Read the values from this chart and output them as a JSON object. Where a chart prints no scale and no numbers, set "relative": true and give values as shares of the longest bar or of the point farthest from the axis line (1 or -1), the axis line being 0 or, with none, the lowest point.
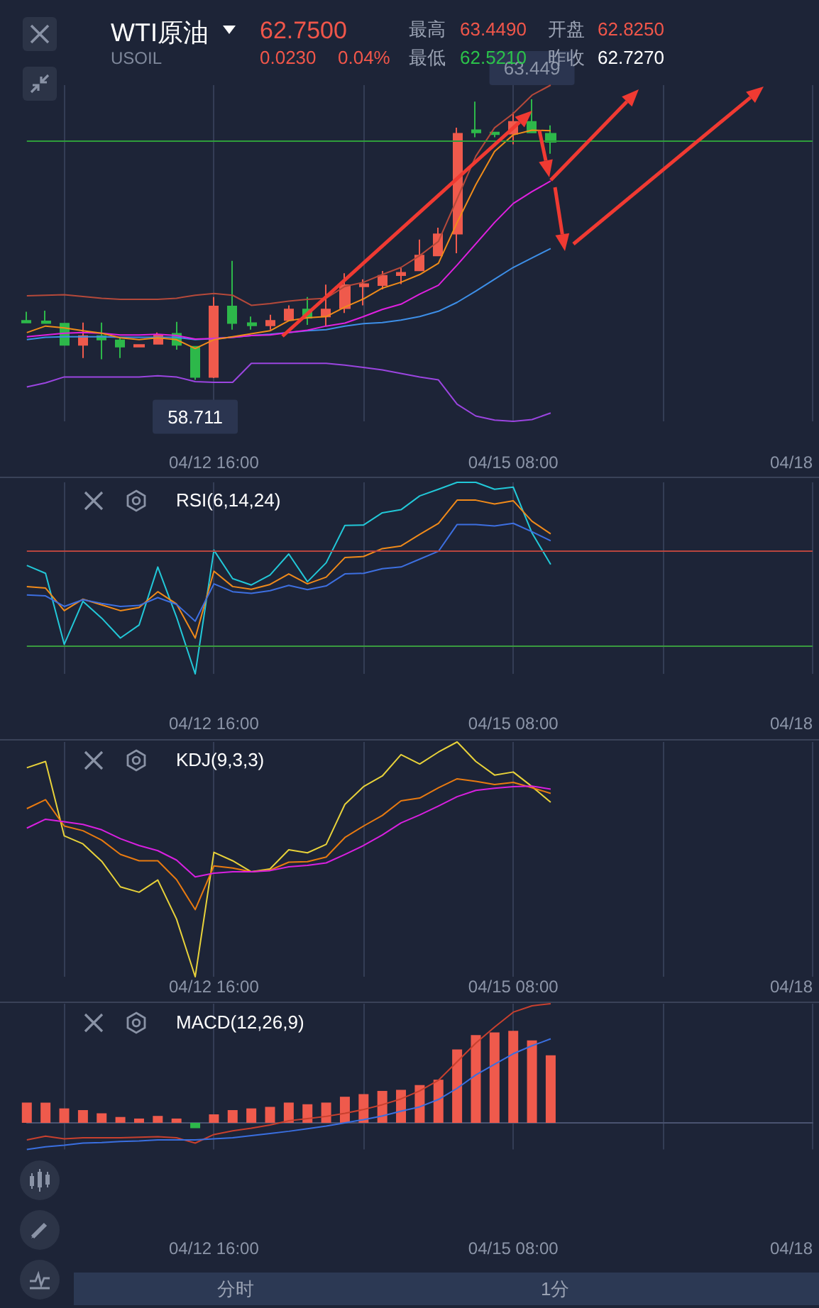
{
  "chart_data": [
    {
      "type": "candlestick",
      "title": "WTI原油",
      "subtitle": "USOIL",
      "categories": [
        null,
        null,
        null,
        null,
        null,
        null,
        null,
        null,
        null,
        null,
        "04/12 16:00",
        null,
        null,
        null,
        null,
        null,
        null,
        null,
        null,
        null,
        null,
        null,
        null,
        null,
        null,
        null,
        "04/15 08:00",
        null,
        null,
        null,
        null,
        null,
        null,
        null,
        null,
        null,
        null,
        null,
        null,
        null,
        null,
        null,
        "04/18"
      ],
      "ohlc": [
        [
          59.71,
          59.86,
          59.68,
          59.68
        ],
        [
          59.7,
          59.88,
          59.67,
          59.67
        ],
        [
          59.66,
          59.66,
          59.3,
          59.3
        ],
        [
          59.3,
          59.68,
          59.08,
          59.45
        ],
        [
          59.45,
          59.68,
          59.06,
          59.39
        ],
        [
          59.38,
          59.42,
          59.08,
          59.27
        ],
        [
          59.27,
          59.3,
          59.26,
          59.3
        ],
        [
          59.32,
          59.51,
          59.32,
          59.47
        ],
        [
          59.49,
          59.69,
          59.22,
          59.3
        ],
        [
          59.27,
          59.27,
          58.711,
          58.76
        ],
        [
          58.76,
          60.11,
          58.74,
          59.95
        ],
        [
          59.95,
          60.72,
          59.56,
          59.67
        ],
        [
          59.67,
          59.78,
          59.56,
          59.63
        ],
        [
          59.63,
          59.81,
          59.56,
          59.71
        ],
        [
          59.72,
          59.97,
          59.72,
          59.9
        ],
        [
          59.9,
          60.11,
          59.64,
          59.76
        ],
        [
          59.78,
          60.32,
          59.62,
          59.9
        ],
        [
          59.92,
          60.51,
          59.84,
          60.31
        ],
        [
          60.29,
          60.41,
          59.97,
          60.33
        ],
        [
          60.31,
          60.55,
          60.24,
          60.47
        ],
        [
          60.48,
          60.6,
          60.33,
          60.52
        ],
        [
          60.56,
          61.08,
          60.56,
          60.81
        ],
        [
          60.81,
          61.28,
          60.81,
          61.17
        ],
        [
          61.18,
          62.97,
          60.85,
          62.87
        ],
        [
          62.93,
          63.41,
          62.81,
          62.89
        ],
        [
          62.89,
          62.89,
          62.81,
          62.86
        ],
        [
          62.87,
          63.23,
          62.69,
          63.07
        ],
        [
          63.07,
          63.449,
          62.89,
          62.89
        ],
        [
          62.87,
          63.01,
          62.53,
          62.73
        ],
        null,
        null,
        null,
        null,
        null,
        null,
        null,
        null,
        null,
        null,
        null,
        null,
        null,
        null
      ],
      "colors": [
        "#2db84a",
        "#2db84a",
        "#2db84a",
        "#ef5a4c",
        "#2db84a",
        "#2db84a",
        "#ef5a4c",
        "#ef5a4c",
        "#2db84a",
        "#2db84a",
        "#ef5a4c",
        "#2db84a",
        "#2db84a",
        "#ef5a4c",
        "#ef5a4c",
        "#2db84a",
        "#ef5a4c",
        "#ef5a4c",
        "#ef5a4c",
        "#ef5a4c",
        "#ef5a4c",
        "#ef5a4c",
        "#ef5a4c",
        "#ef5a4c",
        "#2db84a",
        "#2db84a",
        "#ef5a4c",
        "#2db84a",
        "#2db84a",
        null,
        null,
        null,
        null,
        null,
        null,
        null,
        null,
        null,
        null,
        null,
        null,
        null,
        null
      ],
      "series": [
        {
          "type": "line",
          "color": "#b5493a",
          "values": [
            60.13,
            60.14,
            60.15,
            60.12,
            60.09,
            60.07,
            60.07,
            60.07,
            60.09,
            60.14,
            60.17,
            60.14,
            59.97,
            60.0,
            60.04,
            60.07,
            60.09,
            60.29,
            60.36,
            60.49,
            60.61,
            60.81,
            61.05,
            61.77,
            62.49,
            62.97,
            63.21,
            63.52,
            63.69,
            null,
            null,
            null,
            null,
            null,
            null,
            null,
            null,
            null,
            null,
            null,
            null,
            null,
            null
          ]
        },
        {
          "type": "line",
          "color": "#9b45e0",
          "values": [
            58.59,
            58.66,
            58.76,
            58.76,
            58.76,
            58.76,
            58.76,
            58.78,
            58.76,
            58.68,
            58.67,
            58.67,
            58.99,
            58.99,
            58.99,
            58.99,
            58.99,
            58.96,
            58.92,
            58.88,
            58.82,
            58.76,
            58.71,
            58.3,
            58.1,
            58.03,
            58.01,
            58.04,
            58.15,
            null,
            null,
            null,
            null,
            null,
            null,
            null,
            null,
            null,
            null,
            null,
            null,
            null,
            null
          ]
        },
        {
          "type": "line",
          "color": "#f08c1a",
          "values": [
            59.51,
            59.62,
            59.59,
            59.54,
            59.5,
            59.42,
            59.39,
            59.42,
            59.39,
            59.24,
            59.39,
            59.44,
            59.49,
            59.54,
            59.71,
            59.76,
            59.78,
            59.94,
            60.08,
            60.26,
            60.36,
            60.49,
            60.68,
            61.37,
            62.01,
            62.57,
            62.85,
            62.93,
            62.92,
            null,
            null,
            null,
            null,
            null,
            null,
            null,
            null,
            null,
            null,
            null,
            null,
            null,
            null
          ]
        },
        {
          "type": "line",
          "color": "#e020e0",
          "values": [
            59.44,
            59.47,
            59.5,
            59.51,
            59.5,
            59.47,
            59.47,
            59.48,
            59.46,
            59.4,
            59.41,
            59.43,
            59.46,
            59.47,
            59.51,
            59.55,
            59.62,
            59.67,
            59.78,
            59.9,
            59.99,
            60.16,
            60.31,
            60.65,
            61.01,
            61.37,
            61.69,
            61.89,
            62.07,
            null,
            null,
            null,
            null,
            null,
            null,
            null,
            null,
            null,
            null,
            null,
            null,
            null,
            null
          ]
        },
        {
          "type": "line",
          "color": "#3d8fe8",
          "values": [
            59.39,
            59.43,
            59.44,
            59.44,
            59.44,
            59.43,
            59.43,
            59.43,
            59.43,
            59.39,
            59.41,
            59.43,
            59.46,
            59.48,
            59.51,
            59.54,
            59.56,
            59.62,
            59.66,
            59.68,
            59.72,
            59.78,
            59.87,
            60.02,
            60.21,
            60.41,
            60.61,
            60.77,
            60.93,
            null,
            null,
            null,
            null,
            null,
            null,
            null,
            null,
            null,
            null,
            null,
            null,
            null,
            null
          ]
        }
      ],
      "ref_lines": [
        {
          "axis": "y",
          "value": 62.75,
          "color": "#2f9e3a"
        }
      ],
      "annotations": [
        "62.7500",
        "0.0230",
        "0.04%",
        "最高",
        "63.4490",
        "开盘",
        "62.8250",
        "最低",
        "62.5210",
        "昨收",
        "62.7270",
        {
          "text": "63.449",
          "y": 63.449
        },
        {
          "text": "58.711",
          "y": 58.711
        }
      ],
      "grid": "x",
      "tick_labels": "x"
    },
    {
      "type": "line",
      "title": "RSI(6,14,24)",
      "relative": true,
      "categories": [
        null,
        null,
        null,
        null,
        null,
        null,
        null,
        null,
        null,
        null,
        "04/12 16:00",
        null,
        null,
        null,
        null,
        null,
        null,
        null,
        null,
        null,
        null,
        null,
        null,
        null,
        null,
        null,
        "04/15 08:00",
        null,
        null,
        null,
        null,
        null,
        null,
        null,
        null,
        null,
        null,
        null,
        null,
        null,
        null,
        null,
        "04/18"
      ],
      "series": [
        {
          "color": "#22c8d8",
          "values": [
            0.566,
            0.525,
            0.154,
            0.379,
            0.291,
            0.187,
            0.255,
            0.558,
            0.297,
            0,
            0.646,
            0.497,
            0.464,
            0.516,
            0.626,
            0.481,
            0.58,
            0.775,
            0.777,
            0.841,
            0.857,
            0.929,
            0.964,
            1,
            1,
            0.964,
            0.975,
            0.736,
            0.571,
            null,
            null,
            null,
            null,
            null,
            null,
            null,
            null,
            null,
            null,
            null,
            null,
            null,
            null
          ]
        },
        {
          "color": "#f08a1a",
          "values": [
            0.456,
            0.448,
            0.33,
            0.39,
            0.36,
            0.33,
            0.346,
            0.429,
            0.365,
            0.187,
            0.536,
            0.456,
            0.442,
            0.467,
            0.522,
            0.47,
            0.505,
            0.607,
            0.613,
            0.654,
            0.668,
            0.728,
            0.786,
            0.907,
            0.907,
            0.887,
            0.904,
            0.797,
            0.731,
            null,
            null,
            null,
            null,
            null,
            null,
            null,
            null,
            null,
            null,
            null,
            null,
            null,
            null
          ]
        },
        {
          "color": "#3d6fe0",
          "values": [
            0.412,
            0.407,
            0.352,
            0.387,
            0.368,
            0.352,
            0.357,
            0.398,
            0.363,
            0.275,
            0.47,
            0.429,
            0.42,
            0.434,
            0.462,
            0.44,
            0.459,
            0.522,
            0.525,
            0.549,
            0.558,
            0.599,
            0.64,
            0.78,
            0.78,
            0.772,
            0.786,
            0.742,
            0.695,
            null,
            null,
            null,
            null,
            null,
            null,
            null,
            null,
            null,
            null,
            null,
            null,
            null,
            null
          ]
        }
      ],
      "ref_lines": [
        {
          "axis": "y",
          "value": 0.64,
          "color": "#b8453e"
        },
        {
          "axis": "y",
          "value": 0.154,
          "color": "#3a9a3e"
        }
      ],
      "grid": "x"
    },
    {
      "type": "line",
      "title": "KDJ(9,3,3)",
      "relative": true,
      "categories": [
        null,
        null,
        null,
        null,
        null,
        null,
        null,
        null,
        null,
        null,
        "04/12 16:00",
        null,
        null,
        null,
        null,
        null,
        null,
        null,
        null,
        null,
        null,
        null,
        null,
        null,
        null,
        null,
        "04/15 08:00",
        null,
        null,
        null,
        null,
        null,
        null,
        null,
        null,
        null,
        null,
        null,
        null,
        null,
        null,
        null,
        "04/18"
      ],
      "series": [
        {
          "color": "#e8d23a",
          "values": [
            0.89,
            0.917,
            0.6,
            0.566,
            0.492,
            0.383,
            0.36,
            0.412,
            0.246,
            0,
            0.53,
            0.494,
            0.447,
            0.459,
            0.541,
            0.528,
            0.564,
            0.734,
            0.81,
            0.855,
            0.946,
            0.906,
            0.957,
            1,
            0.917,
            0.859,
            0.872,
            0.81,
            0.743,
            null,
            null,
            null,
            null,
            null,
            null,
            null,
            null,
            null,
            null,
            null,
            null,
            null,
            null
          ]
        },
        {
          "color": "#e87a10",
          "values": [
            0.716,
            0.754,
            0.642,
            0.622,
            0.582,
            0.521,
            0.494,
            0.494,
            0.414,
            0.286,
            0.472,
            0.463,
            0.447,
            0.454,
            0.488,
            0.49,
            0.51,
            0.593,
            0.642,
            0.687,
            0.749,
            0.761,
            0.805,
            0.843,
            0.832,
            0.819,
            0.828,
            0.805,
            0.781,
            null,
            null,
            null,
            null,
            null,
            null,
            null,
            null,
            null,
            null,
            null,
            null,
            null,
            null
          ]
        },
        {
          "color": "#d820e0",
          "values": [
            0.633,
            0.671,
            0.66,
            0.649,
            0.626,
            0.588,
            0.559,
            0.537,
            0.497,
            0.425,
            0.441,
            0.447,
            0.447,
            0.452,
            0.468,
            0.474,
            0.485,
            0.521,
            0.559,
            0.604,
            0.655,
            0.689,
            0.727,
            0.767,
            0.794,
            0.803,
            0.81,
            0.812,
            0.799,
            null,
            null,
            null,
            null,
            null,
            null,
            null,
            null,
            null,
            null,
            null,
            null,
            null,
            null
          ]
        }
      ],
      "grid": "x"
    },
    {
      "type": "bar",
      "title": "MACD(12,26,9)",
      "relative": true,
      "categories": [
        null,
        null,
        null,
        null,
        null,
        null,
        null,
        null,
        null,
        null,
        "04/12 16:00",
        null,
        null,
        null,
        null,
        null,
        null,
        null,
        null,
        null,
        null,
        null,
        null,
        null,
        null,
        null,
        "04/15 08:00",
        null,
        null,
        null,
        null,
        null,
        null,
        null,
        null,
        null,
        null,
        null,
        null,
        null,
        null,
        null,
        "04/18"
      ],
      "series": [
        {
          "type": "bar",
          "colors": [
            "#ef5a4c",
            "#ef5a4c",
            "#ef5a4c",
            "#ef5a4c",
            "#ef5a4c",
            "#ef5a4c",
            "#ef5a4c",
            "#ef5a4c",
            "#ef5a4c",
            "#2db84a",
            "#ef5a4c",
            "#ef5a4c",
            "#ef5a4c",
            "#ef5a4c",
            "#ef5a4c",
            "#ef5a4c",
            "#ef5a4c",
            "#ef5a4c",
            "#ef5a4c",
            "#ef5a4c",
            "#ef5a4c",
            "#ef5a4c",
            "#ef5a4c",
            "#ef5a4c",
            "#ef5a4c",
            "#ef5a4c",
            "#ef5a4c",
            "#ef5a4c",
            "#ef5a4c",
            null,
            null,
            null,
            null,
            null,
            null,
            null,
            null,
            null,
            null,
            null,
            null,
            null,
            null
          ],
          "values": [
            0.17,
            0.17,
            0.121,
            0.107,
            0.08,
            0.049,
            0.036,
            0.058,
            0.036,
            -0.045,
            0.071,
            0.107,
            0.121,
            0.134,
            0.17,
            0.156,
            0.17,
            0.219,
            0.241,
            0.268,
            0.277,
            0.317,
            0.362,
            0.616,
            0.737,
            0.759,
            0.772,
            0.692,
            0.567,
            null,
            null,
            null,
            null,
            null,
            null,
            null,
            null,
            null,
            null,
            null,
            null,
            null,
            null
          ]
        },
        {
          "type": "line",
          "color": "#c8402e",
          "values": [
            -0.143,
            -0.112,
            -0.134,
            -0.125,
            -0.125,
            -0.125,
            -0.121,
            -0.116,
            -0.125,
            -0.17,
            -0.098,
            -0.067,
            -0.045,
            -0.018,
            0.018,
            0.036,
            0.054,
            0.08,
            0.112,
            0.152,
            0.201,
            0.268,
            0.357,
            0.513,
            0.67,
            0.804,
            0.929,
            0.982,
            1,
            null,
            null,
            null,
            null,
            null,
            null,
            null,
            null,
            null,
            null,
            null,
            null,
            null,
            null
          ]
        },
        {
          "type": "line",
          "color": "#3a6fe0",
          "values": [
            -0.223,
            -0.201,
            -0.188,
            -0.17,
            -0.165,
            -0.156,
            -0.152,
            -0.143,
            -0.143,
            -0.143,
            -0.134,
            -0.125,
            -0.107,
            -0.089,
            -0.071,
            -0.049,
            -0.027,
            0,
            0.027,
            0.058,
            0.098,
            0.134,
            0.196,
            0.29,
            0.402,
            0.491,
            0.58,
            0.647,
            0.705,
            null,
            null,
            null,
            null,
            null,
            null,
            null,
            null,
            null,
            null,
            null,
            null,
            null,
            null
          ]
        }
      ],
      "annotations": [
        "分时",
        "1分"
      ],
      "grid": "x"
    }
  ]
}
